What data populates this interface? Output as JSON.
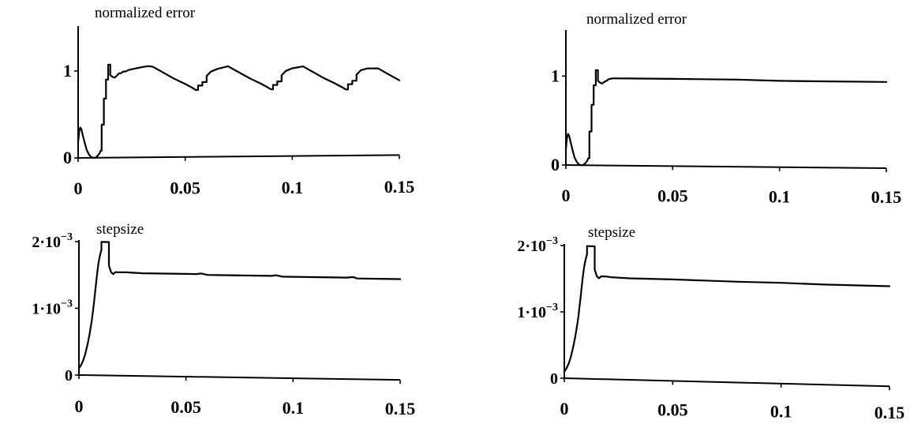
{
  "colors": {
    "background": "#ffffff",
    "ink": "#000000"
  },
  "chart_data": [
    {
      "type": "line",
      "title": "normalized error",
      "xlabel": "",
      "ylabel": "",
      "xlim": [
        0,
        0.15
      ],
      "ylim": [
        0,
        1.5
      ],
      "x_ticks": [
        0,
        0.05,
        0.1,
        0.15
      ],
      "x_tick_labels": [
        "0",
        "0.05",
        "0.1",
        "0.15"
      ],
      "y_ticks": [
        0,
        1
      ],
      "y_tick_labels": [
        "0",
        "1"
      ],
      "grid": false,
      "series": [
        {
          "x": [
            0,
            0.0005,
            0.001,
            0.0015,
            0.002,
            0.003,
            0.004,
            0.005,
            0.006,
            0.007,
            0.008,
            0.009,
            0.01,
            0.0105,
            0.011,
            0.011,
            0.012,
            0.012,
            0.013,
            0.013,
            0.014,
            0.014,
            0.015,
            0.015,
            0.016,
            0.017,
            0.018,
            0.019,
            0.02,
            0.021,
            0.022,
            0.024,
            0.026,
            0.028,
            0.03,
            0.033,
            0.035,
            0.04,
            0.045,
            0.05,
            0.053,
            0.055,
            0.056,
            0.056,
            0.058,
            0.058,
            0.06,
            0.06,
            0.062,
            0.065,
            0.07,
            0.075,
            0.08,
            0.085,
            0.088,
            0.09,
            0.091,
            0.091,
            0.093,
            0.093,
            0.095,
            0.095,
            0.097,
            0.1,
            0.105,
            0.11,
            0.115,
            0.12,
            0.123,
            0.125,
            0.126,
            0.126,
            0.128,
            0.128,
            0.13,
            0.13,
            0.132,
            0.135,
            0.14,
            0.145,
            0.15
          ],
          "y": [
            0.18,
            0.31,
            0.35,
            0.33,
            0.28,
            0.18,
            0.09,
            0.04,
            0.01,
            0.0,
            0.0,
            0.02,
            0.05,
            0.08,
            0.08,
            0.38,
            0.38,
            0.68,
            0.68,
            0.9,
            0.9,
            1.07,
            1.07,
            0.95,
            0.93,
            0.92,
            0.94,
            0.97,
            0.97,
            0.99,
            0.99,
            1.01,
            1.02,
            1.03,
            1.04,
            1.05,
            1.04,
            0.97,
            0.9,
            0.84,
            0.8,
            0.77,
            0.77,
            0.82,
            0.82,
            0.86,
            0.86,
            0.93,
            0.98,
            1.01,
            1.04,
            0.97,
            0.9,
            0.84,
            0.8,
            0.77,
            0.77,
            0.82,
            0.82,
            0.86,
            0.86,
            0.93,
            0.98,
            1.01,
            1.03,
            0.96,
            0.89,
            0.83,
            0.79,
            0.76,
            0.76,
            0.82,
            0.82,
            0.86,
            0.86,
            0.93,
            0.98,
            1.0,
            1.0,
            0.93,
            0.86
          ]
        }
      ]
    },
    {
      "type": "line",
      "title": "normalized error",
      "xlabel": "",
      "ylabel": "",
      "xlim": [
        0,
        0.15
      ],
      "ylim": [
        0,
        1.5
      ],
      "x_ticks": [
        0,
        0.05,
        0.1,
        0.15
      ],
      "x_tick_labels": [
        "0",
        "0.05",
        "0.1",
        "0.15"
      ],
      "y_ticks": [
        0,
        1
      ],
      "y_tick_labels": [
        "0",
        "1"
      ],
      "grid": false,
      "series": [
        {
          "x": [
            0,
            0.0005,
            0.001,
            0.0015,
            0.002,
            0.003,
            0.004,
            0.005,
            0.006,
            0.007,
            0.008,
            0.009,
            0.01,
            0.0105,
            0.011,
            0.011,
            0.012,
            0.012,
            0.013,
            0.013,
            0.014,
            0.014,
            0.015,
            0.015,
            0.016,
            0.017,
            0.018,
            0.019,
            0.02,
            0.022,
            0.025,
            0.03,
            0.05,
            0.08,
            0.1,
            0.12,
            0.15
          ],
          "y": [
            0.18,
            0.31,
            0.35,
            0.33,
            0.28,
            0.18,
            0.09,
            0.04,
            0.01,
            0.0,
            0.0,
            0.02,
            0.05,
            0.08,
            0.08,
            0.38,
            0.38,
            0.68,
            0.68,
            0.9,
            0.9,
            1.07,
            1.07,
            0.95,
            0.93,
            0.92,
            0.94,
            0.95,
            0.97,
            0.98,
            0.98,
            0.98,
            0.98,
            0.98,
            0.97,
            0.97,
            0.97
          ]
        }
      ]
    },
    {
      "type": "line",
      "title": "stepsize",
      "xlabel": "",
      "ylabel": "",
      "xlim": [
        0,
        0.15
      ],
      "ylim": [
        0,
        0.002
      ],
      "x_ticks": [
        0,
        0.05,
        0.1,
        0.15
      ],
      "x_tick_labels": [
        "0",
        "0.05",
        "0.1",
        "0.15"
      ],
      "y_ticks": [
        0,
        0.001,
        0.002
      ],
      "y_tick_labels": [
        {
          "base": "0"
        },
        {
          "base": "1·10",
          "exp": "−3"
        },
        {
          "base": "2·10",
          "exp": "−3"
        }
      ],
      "grid": false,
      "series": [
        {
          "x": [
            0,
            0.001,
            0.002,
            0.003,
            0.004,
            0.005,
            0.0055,
            0.006,
            0.0065,
            0.007,
            0.0075,
            0.008,
            0.0085,
            0.009,
            0.0095,
            0.01,
            0.0105,
            0.0105,
            0.014,
            0.014,
            0.015,
            0.016,
            0.017,
            0.019,
            0.022,
            0.03,
            0.04,
            0.05,
            0.055,
            0.057,
            0.06,
            0.07,
            0.08,
            0.09,
            0.092,
            0.095,
            0.1,
            0.11,
            0.12,
            0.125,
            0.128,
            0.13,
            0.14,
            0.15
          ],
          "y": [
            0.0001,
            0.00015,
            0.00022,
            0.00032,
            0.00046,
            0.00062,
            0.00072,
            0.00082,
            0.00094,
            0.00108,
            0.00122,
            0.00138,
            0.00152,
            0.00165,
            0.00175,
            0.00182,
            0.00188,
            0.002,
            0.002,
            0.00165,
            0.00155,
            0.00152,
            0.00155,
            0.00155,
            0.00155,
            0.00154,
            0.00154,
            0.00154,
            0.00154,
            0.00155,
            0.00153,
            0.00153,
            0.00153,
            0.00153,
            0.00154,
            0.00152,
            0.00152,
            0.00152,
            0.00152,
            0.00152,
            0.00153,
            0.00151,
            0.00151,
            0.00151
          ]
        }
      ]
    },
    {
      "type": "line",
      "title": "stepsize",
      "xlabel": "",
      "ylabel": "",
      "xlim": [
        0,
        0.15
      ],
      "ylim": [
        0,
        0.002
      ],
      "x_ticks": [
        0,
        0.05,
        0.1,
        0.15
      ],
      "x_tick_labels": [
        "0",
        "0.05",
        "0.1",
        "0.15"
      ],
      "y_ticks": [
        0,
        0.001,
        0.002
      ],
      "y_tick_labels": [
        {
          "base": "0"
        },
        {
          "base": "1·10",
          "exp": "−3"
        },
        {
          "base": "2·10",
          "exp": "−3"
        }
      ],
      "grid": false,
      "series": [
        {
          "x": [
            0,
            0.001,
            0.002,
            0.003,
            0.004,
            0.005,
            0.0055,
            0.006,
            0.0065,
            0.007,
            0.0075,
            0.008,
            0.0085,
            0.009,
            0.0095,
            0.01,
            0.0105,
            0.0105,
            0.014,
            0.014,
            0.015,
            0.016,
            0.017,
            0.019,
            0.022,
            0.03,
            0.05,
            0.08,
            0.1,
            0.12,
            0.15
          ],
          "y": [
            0.0001,
            0.00015,
            0.00022,
            0.00032,
            0.00046,
            0.00062,
            0.00072,
            0.00082,
            0.00094,
            0.00108,
            0.00122,
            0.00138,
            0.00152,
            0.00165,
            0.00175,
            0.00182,
            0.00188,
            0.002,
            0.002,
            0.00165,
            0.00155,
            0.00152,
            0.00155,
            0.00155,
            0.00154,
            0.00153,
            0.00153,
            0.00152,
            0.00152,
            0.00151,
            0.00151
          ]
        }
      ]
    }
  ]
}
